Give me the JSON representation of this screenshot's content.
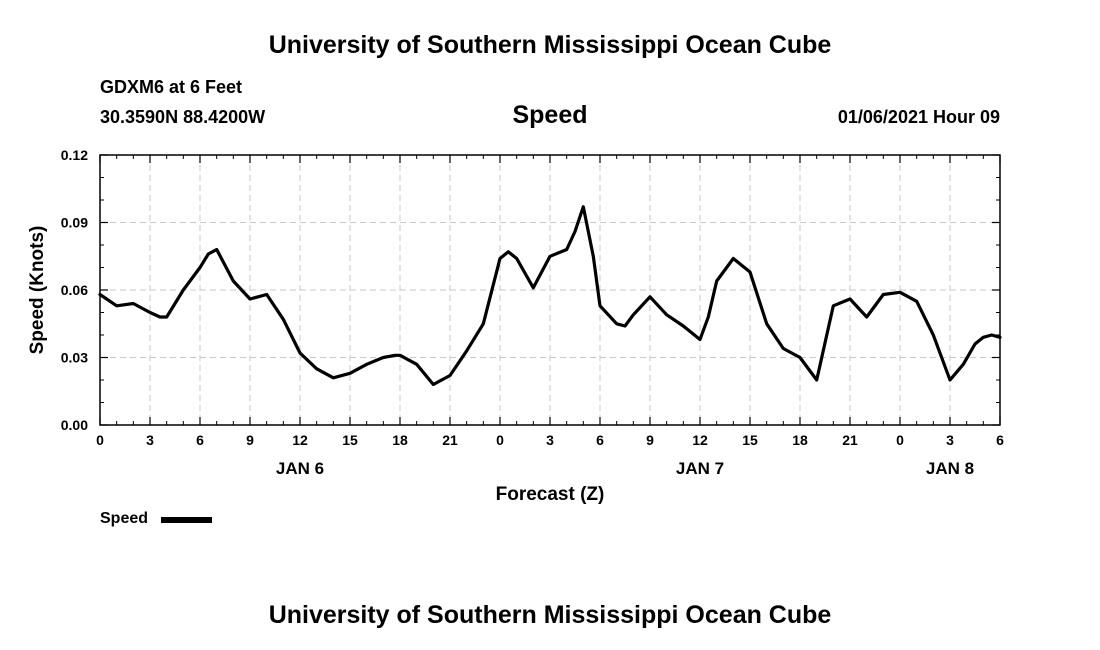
{
  "header": {
    "institution": "University of Southern Mississippi Ocean Cube",
    "station": "GDXM6 at 6 Feet",
    "coords": "30.3590N 88.4200W",
    "chart_name": "Speed",
    "datetime": "01/06/2021 Hour 09"
  },
  "footer": {
    "institution": "University of Southern Mississippi Ocean Cube"
  },
  "legend": {
    "label": "Speed",
    "color": "#000000"
  },
  "chart_data": {
    "type": "line",
    "title": "Speed",
    "xlabel": "Forecast (Z)",
    "ylabel": "Speed (Knots)",
    "grid": true,
    "ylim": [
      0,
      0.12
    ],
    "yticks": [
      "0.00",
      "0.03",
      "0.06",
      "0.09",
      "0.12"
    ],
    "xlim": [
      0,
      54
    ],
    "xticks": [
      "0",
      "3",
      "6",
      "9",
      "12",
      "15",
      "18",
      "21",
      "0",
      "3",
      "6",
      "9",
      "12",
      "15",
      "18",
      "21",
      "0",
      "3",
      "6"
    ],
    "day_labels": [
      {
        "label": "JAN 6",
        "at_hour": 12
      },
      {
        "label": "JAN 7",
        "at_hour": 36
      },
      {
        "label": "JAN 8",
        "at_hour": 51
      }
    ],
    "series": [
      {
        "name": "Speed",
        "color": "#000000",
        "x": [
          0,
          1,
          2,
          3,
          3.6,
          4,
          5,
          6,
          6.5,
          7,
          8,
          9,
          10,
          11,
          12,
          13,
          14,
          15,
          16,
          17,
          17.7,
          18,
          19,
          20,
          21,
          22,
          23,
          24,
          24.5,
          25,
          26,
          27,
          28,
          28.5,
          29,
          29.6,
          30,
          31,
          31.5,
          32,
          33,
          34,
          35,
          36,
          36.5,
          37,
          38,
          39,
          40,
          41,
          42,
          43,
          44,
          45,
          46,
          47,
          48,
          49,
          50,
          51,
          51.8,
          52.5,
          53,
          53.5,
          54
        ],
        "values": [
          0.058,
          0.053,
          0.054,
          0.05,
          0.048,
          0.048,
          0.06,
          0.07,
          0.076,
          0.078,
          0.064,
          0.056,
          0.058,
          0.047,
          0.032,
          0.025,
          0.021,
          0.023,
          0.027,
          0.03,
          0.031,
          0.031,
          0.027,
          0.018,
          0.022,
          0.033,
          0.045,
          0.074,
          0.077,
          0.074,
          0.061,
          0.075,
          0.078,
          0.086,
          0.097,
          0.075,
          0.053,
          0.045,
          0.044,
          0.049,
          0.057,
          0.049,
          0.044,
          0.038,
          0.048,
          0.064,
          0.074,
          0.068,
          0.045,
          0.034,
          0.03,
          0.02,
          0.053,
          0.056,
          0.048,
          0.058,
          0.059,
          0.055,
          0.04,
          0.02,
          0.027,
          0.036,
          0.039,
          0.04,
          0.039
        ]
      }
    ]
  }
}
